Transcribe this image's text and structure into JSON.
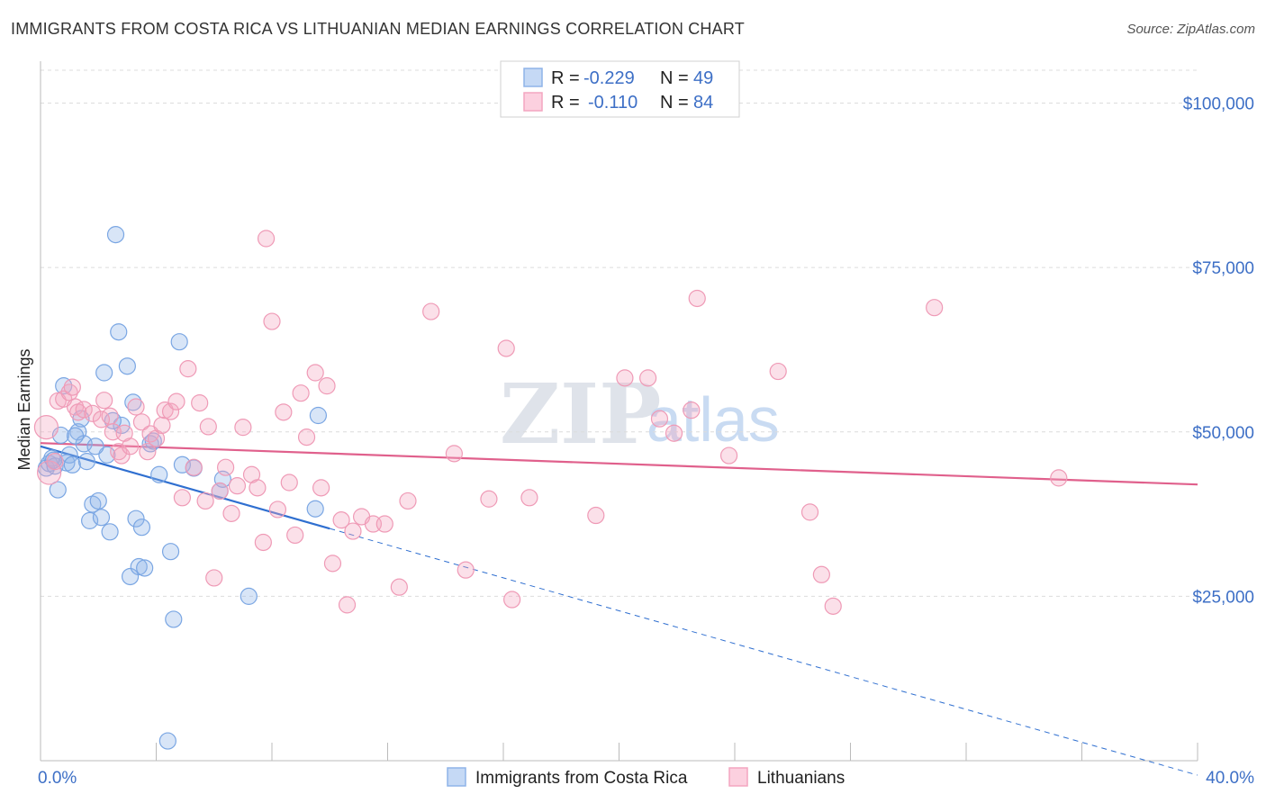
{
  "header": {
    "title": "IMMIGRANTS FROM COSTA RICA VS LITHUANIAN MEDIAN EARNINGS CORRELATION CHART",
    "source": "Source: ZipAtlas.com"
  },
  "legend_box": {
    "rows": [
      {
        "r_label": "R =",
        "r_value": "-0.229",
        "n_label": "N =",
        "n_value": "49"
      },
      {
        "r_label": "R =",
        "r_value": "-0.110",
        "n_label": "N =",
        "n_value": "84"
      }
    ]
  },
  "watermark": {
    "zip": "ZIP",
    "atlas": "atlas"
  },
  "chart_data": {
    "type": "scatter",
    "title": "IMMIGRANTS FROM COSTA RICA VS LITHUANIAN MEDIAN EARNINGS CORRELATION CHART",
    "xlabel": "",
    "ylabel": "Median Earnings",
    "xlim": [
      0,
      40
    ],
    "ylim": [
      0,
      105000
    ],
    "x_tick_labels": [
      "0.0%",
      "40.0%"
    ],
    "y_ticks": [
      25000,
      50000,
      75000,
      100000
    ],
    "y_tick_labels": [
      "$25,000",
      "$50,000",
      "$75,000",
      "$100,000"
    ],
    "grid": true,
    "legend_position": "top-center",
    "series": [
      {
        "name": "Immigrants from Costa Rica",
        "color": "#8fb4e8",
        "line_color": "#2f6fd0",
        "r": -0.229,
        "n": 49,
        "trend": {
          "x0": 0,
          "y0": 47800,
          "x1": 10,
          "y1": 35300,
          "dash_x1": 40,
          "dash_y1": -2200
        },
        "points": [
          [
            0.2,
            44500
          ],
          [
            0.3,
            45200
          ],
          [
            0.4,
            46000
          ],
          [
            0.5,
            44800
          ],
          [
            0.6,
            41200
          ],
          [
            0.7,
            49500
          ],
          [
            0.8,
            57000
          ],
          [
            0.9,
            45300
          ],
          [
            1.0,
            46500
          ],
          [
            1.1,
            45000
          ],
          [
            1.3,
            50000
          ],
          [
            1.4,
            52000
          ],
          [
            1.5,
            48200
          ],
          [
            1.6,
            45500
          ],
          [
            1.7,
            36500
          ],
          [
            1.8,
            39000
          ],
          [
            2.0,
            39500
          ],
          [
            2.1,
            37000
          ],
          [
            2.2,
            59000
          ],
          [
            2.3,
            46500
          ],
          [
            2.4,
            34800
          ],
          [
            2.6,
            80000
          ],
          [
            2.7,
            65200
          ],
          [
            2.8,
            51000
          ],
          [
            3.0,
            60000
          ],
          [
            3.1,
            28000
          ],
          [
            3.2,
            54500
          ],
          [
            3.3,
            36800
          ],
          [
            3.4,
            29500
          ],
          [
            3.5,
            35500
          ],
          [
            3.6,
            29300
          ],
          [
            3.8,
            48200
          ],
          [
            4.1,
            43500
          ],
          [
            4.5,
            31800
          ],
          [
            4.6,
            21500
          ],
          [
            4.8,
            63700
          ],
          [
            4.9,
            45000
          ],
          [
            5.3,
            44500
          ],
          [
            6.2,
            41000
          ],
          [
            6.3,
            42800
          ],
          [
            7.2,
            25000
          ],
          [
            9.5,
            38300
          ],
          [
            9.6,
            52500
          ],
          [
            4.4,
            3000
          ],
          [
            1.2,
            49400
          ],
          [
            0.45,
            45700
          ],
          [
            2.5,
            51700
          ],
          [
            3.9,
            48600
          ],
          [
            1.9,
            47800
          ]
        ]
      },
      {
        "name": "Lithuanians",
        "color": "#f4a6c0",
        "line_color": "#e0608c",
        "r": -0.11,
        "n": 84,
        "trend": {
          "x0": 0,
          "y0": 48300,
          "x1": 40,
          "y1": 42000
        },
        "points": [
          [
            0.2,
            50700
          ],
          [
            0.3,
            43800
          ],
          [
            0.5,
            45500
          ],
          [
            0.6,
            54700
          ],
          [
            0.8,
            55000
          ],
          [
            1.0,
            56000
          ],
          [
            1.1,
            56800
          ],
          [
            1.2,
            53800
          ],
          [
            1.3,
            53000
          ],
          [
            1.5,
            53400
          ],
          [
            1.8,
            52800
          ],
          [
            2.1,
            51900
          ],
          [
            2.2,
            54800
          ],
          [
            2.4,
            52400
          ],
          [
            2.5,
            50000
          ],
          [
            2.7,
            47000
          ],
          [
            2.8,
            46400
          ],
          [
            2.9,
            49800
          ],
          [
            3.1,
            47800
          ],
          [
            3.3,
            53800
          ],
          [
            3.5,
            51500
          ],
          [
            3.7,
            47000
          ],
          [
            3.8,
            49700
          ],
          [
            4.0,
            49000
          ],
          [
            4.2,
            51000
          ],
          [
            4.3,
            53300
          ],
          [
            4.5,
            53100
          ],
          [
            4.7,
            54600
          ],
          [
            4.9,
            40000
          ],
          [
            5.1,
            59600
          ],
          [
            5.3,
            44600
          ],
          [
            5.5,
            54400
          ],
          [
            5.7,
            39500
          ],
          [
            5.8,
            50800
          ],
          [
            6.0,
            27800
          ],
          [
            6.2,
            41000
          ],
          [
            6.4,
            44600
          ],
          [
            6.6,
            37600
          ],
          [
            6.8,
            41800
          ],
          [
            7.0,
            50700
          ],
          [
            7.3,
            43500
          ],
          [
            7.5,
            41500
          ],
          [
            7.7,
            33200
          ],
          [
            7.8,
            79400
          ],
          [
            8.0,
            66800
          ],
          [
            8.2,
            38200
          ],
          [
            8.4,
            53000
          ],
          [
            8.6,
            42300
          ],
          [
            8.8,
            34300
          ],
          [
            9.0,
            55900
          ],
          [
            9.2,
            49200
          ],
          [
            9.5,
            59000
          ],
          [
            9.7,
            41500
          ],
          [
            9.9,
            57000
          ],
          [
            10.1,
            30000
          ],
          [
            10.4,
            36600
          ],
          [
            10.6,
            23700
          ],
          [
            10.8,
            34900
          ],
          [
            11.1,
            37100
          ],
          [
            11.5,
            36000
          ],
          [
            11.9,
            36000
          ],
          [
            12.4,
            26400
          ],
          [
            12.7,
            39500
          ],
          [
            13.5,
            68300
          ],
          [
            14.3,
            46700
          ],
          [
            14.7,
            29000
          ],
          [
            15.5,
            39800
          ],
          [
            16.1,
            62700
          ],
          [
            16.3,
            24500
          ],
          [
            16.9,
            40000
          ],
          [
            19.2,
            37300
          ],
          [
            20.2,
            58200
          ],
          [
            21.0,
            58200
          ],
          [
            21.4,
            52000
          ],
          [
            21.9,
            49800
          ],
          [
            22.5,
            53300
          ],
          [
            22.7,
            70300
          ],
          [
            23.8,
            46400
          ],
          [
            25.5,
            59200
          ],
          [
            26.6,
            37800
          ],
          [
            27.0,
            28300
          ],
          [
            27.4,
            23500
          ],
          [
            30.9,
            68900
          ],
          [
            35.2,
            43000
          ]
        ]
      }
    ]
  },
  "bottom_legend": [
    {
      "label": "Immigrants from Costa Rica",
      "color": "#8fb4e8"
    },
    {
      "label": "Lithuanians",
      "color": "#f4a6c0"
    }
  ]
}
